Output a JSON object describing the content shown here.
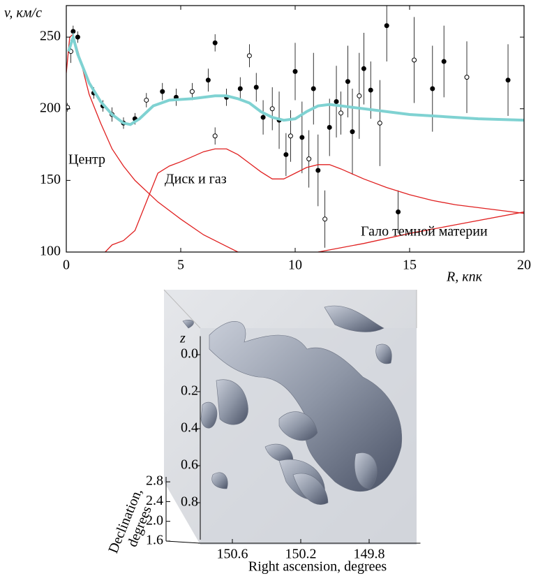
{
  "chart_data": [
    {
      "type": "line",
      "xlabel": "R, кпк",
      "ylabel": "v, км/с",
      "annotations": [
        "Центр",
        "Диск и газ",
        "Гало темной материи"
      ],
      "xlim": [
        0,
        20
      ],
      "ylim": [
        100,
        272
      ],
      "xticks": [
        0,
        5,
        10,
        15,
        20
      ],
      "yticks": [
        100,
        150,
        200,
        250
      ],
      "series": [
        {
          "color": "#e02020",
          "x": [
            0,
            0.15,
            0.3,
            0.6,
            1,
            1.5,
            2,
            2.5,
            3,
            4,
            5,
            6,
            7,
            7.5
          ],
          "values": [
            225,
            250,
            252,
            235,
            210,
            190,
            172,
            160,
            150,
            135,
            123,
            112,
            104,
            100
          ]
        },
        {
          "color": "#e02020",
          "x": [
            1.7,
            2,
            2.5,
            3,
            3.5,
            4,
            4.5,
            5,
            6,
            6.5,
            7,
            7.5,
            8,
            8.5,
            9,
            9.5,
            10,
            10.5,
            11,
            11.5,
            12,
            13,
            14,
            15,
            16,
            17,
            18,
            19,
            20
          ],
          "values": [
            100,
            105,
            108,
            115,
            135,
            155,
            160,
            163,
            170,
            172,
            172,
            168,
            162,
            156,
            151,
            151,
            155,
            159,
            161,
            161,
            158,
            151,
            145,
            140,
            136,
            133,
            131,
            129,
            127
          ]
        },
        {
          "color": "#e02020",
          "x": [
            11,
            13,
            15,
            17,
            20
          ],
          "values": [
            100,
            106,
            113,
            119,
            128
          ]
        },
        {
          "color": "#7fd2d2",
          "x": [
            0.1,
            0.3,
            0.5,
            1,
            1.5,
            2,
            2.5,
            2.8,
            3.2,
            3.8,
            4.5,
            5.5,
            6.5,
            7,
            7.5,
            8,
            8.5,
            9,
            9.5,
            10,
            10.5,
            11,
            11.5,
            12,
            13,
            14,
            15,
            16,
            17,
            18,
            19,
            20
          ],
          "values": [
            240,
            250,
            238,
            218,
            205,
            196,
            190,
            189,
            193,
            202,
            206,
            207,
            209,
            209,
            207,
            204,
            198,
            194,
            192,
            193,
            198,
            202,
            203,
            202,
            200,
            198,
            196,
            195,
            194,
            193,
            192.5,
            192
          ]
        }
      ],
      "scatter": {
        "color": "#000000",
        "x": [
          0.2,
          0.3,
          0.5,
          0.05,
          1.2,
          1.6,
          2.0,
          2.5,
          3.0,
          3.5,
          4.2,
          4.8,
          5.5,
          6.2,
          6.5,
          6.5,
          7.0,
          7.6,
          8.0,
          8.3,
          8.6,
          9.0,
          9.3,
          9.6,
          9.8,
          10.0,
          10.3,
          10.6,
          10.8,
          11.0,
          11.3,
          11.5,
          11.8,
          12.0,
          12.3,
          12.5,
          12.8,
          13.0,
          13.3,
          13.7,
          14.0,
          14.5,
          15.2,
          16.0,
          16.5,
          17.5,
          19.3
        ],
        "values": [
          240,
          254,
          250,
          201,
          211,
          202,
          196,
          190,
          193,
          206,
          212,
          208,
          212,
          220,
          246,
          181,
          208,
          214,
          237,
          215,
          194,
          200,
          192,
          168,
          181,
          226,
          180,
          165,
          214,
          157,
          123,
          187,
          205,
          197,
          219,
          184,
          209,
          228,
          213,
          190,
          258,
          128,
          234,
          214,
          233,
          222,
          220
        ],
        "errors": [
          8,
          4,
          4,
          3,
          4,
          4,
          5,
          4,
          4,
          5,
          6,
          6,
          6,
          8,
          6,
          6,
          6,
          8,
          8,
          10,
          12,
          15,
          20,
          15,
          18,
          20,
          25,
          20,
          25,
          25,
          20,
          20,
          25,
          15,
          25,
          30,
          30,
          25,
          20,
          30,
          25,
          15,
          30,
          30,
          25,
          25,
          25
        ]
      }
    },
    {
      "type": "volume",
      "zlabel": "z",
      "ylabel": [
        "Declination,",
        "degrees"
      ],
      "xlabel": "Right ascension, degrees",
      "zlim": [
        -0.1,
        1.0
      ],
      "zticks": [
        {
          "value": 0,
          "label": "0.0"
        },
        0.2,
        0.4,
        0.6,
        0.8
      ],
      "ylim": [
        1.6,
        2.9
      ],
      "yticks": [
        1.6,
        {
          "value": 2,
          "label": "2.0"
        },
        2.4,
        2.8
      ],
      "xlim": [
        150.8,
        149.5
      ],
      "xticks": [
        150.6,
        150.2,
        149.8
      ]
    }
  ]
}
